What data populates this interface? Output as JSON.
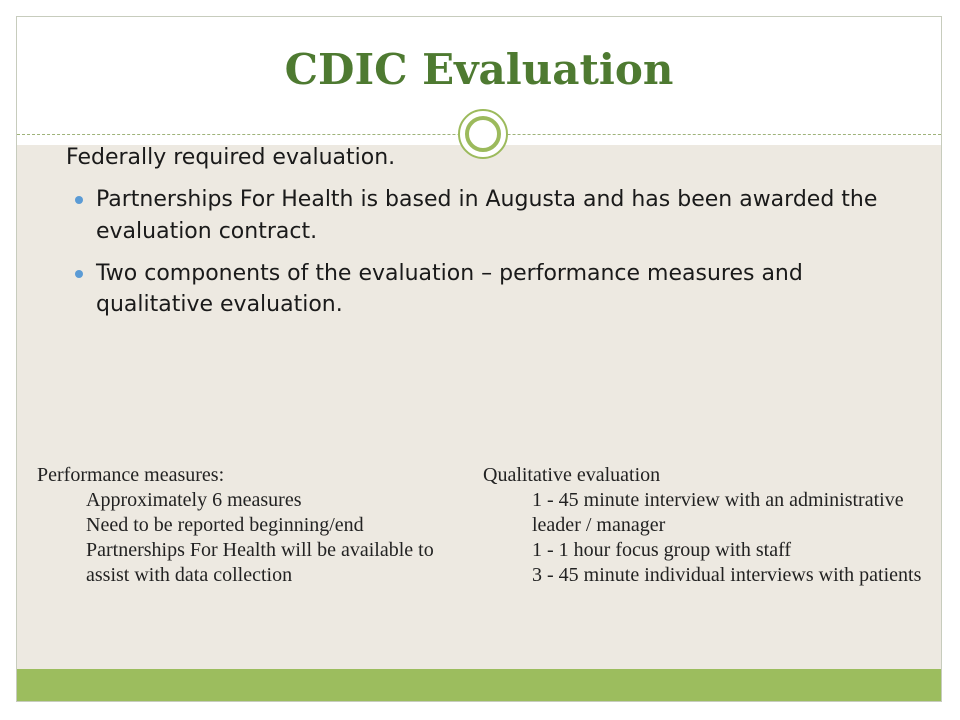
{
  "slide": {
    "title": "CDIC Evaluation",
    "lead": "Federally required evaluation.",
    "bullets": [
      "Partnerships For Health is based in Augusta and has been awarded the evaluation contract.",
      "Two components of the evaluation – performance measures and qualitative evaluation."
    ],
    "left_column": {
      "heading": "Performance measures:",
      "items": [
        "Approximately  6 measures",
        "Need to be reported beginning/end",
        "Partnerships For Health will be available to assist with data collection"
      ]
    },
    "right_column": {
      "heading": "Qualitative evaluation",
      "items": [
        "1 - 45 minute interview with an administrative leader / manager",
        "1 - 1 hour focus group with  staff",
        "3 - 45 minute individual interviews with patients"
      ]
    }
  },
  "colors": {
    "title": "#4e7a31",
    "accent_green": "#9cbd5e",
    "bullet_blue": "#5b9bd5",
    "content_background": "#ede9e1"
  },
  "icons": {
    "divider_ornament": "double-ring-icon",
    "bullet": "bullet-dot-icon"
  }
}
